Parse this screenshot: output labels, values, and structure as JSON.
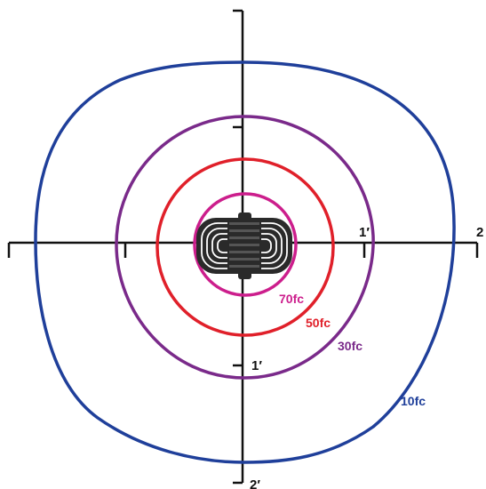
{
  "axes": {
    "x_tick_labels": [
      "1′",
      "2"
    ],
    "y_tick_labels": [
      "1′",
      "2′"
    ]
  },
  "contours": [
    {
      "label": "70fc",
      "color": "#cc1e8c"
    },
    {
      "label": "50fc",
      "color": "#e0202a"
    },
    {
      "label": "30fc",
      "color": "#7a2a8a"
    },
    {
      "label": "10fc",
      "color": "#1f3f9a"
    }
  ],
  "colors": {
    "axis": "#111111",
    "fixture_body": "#2a2a2a",
    "fixture_coil": "#ffffff"
  },
  "icons": {
    "fixture": "fixture-top-view-icon"
  }
}
